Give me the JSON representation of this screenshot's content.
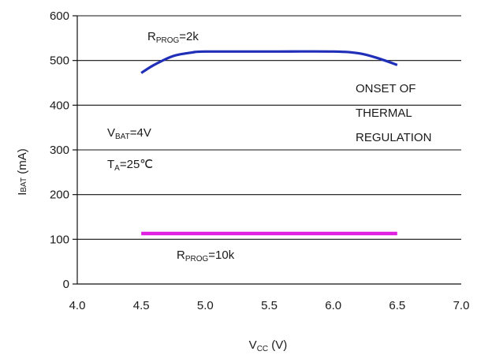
{
  "chart_data": {
    "type": "line",
    "title": "",
    "xlabel": {
      "main": "V",
      "sub": "CC",
      "rest": " (V)"
    },
    "ylabel": {
      "main": "I",
      "sub": "BAT",
      "rest": " (mA)"
    },
    "xlim": [
      4.0,
      7.0
    ],
    "ylim": [
      0,
      600
    ],
    "xticks": [
      "4.0",
      "4.5",
      "5.0",
      "5.5",
      "6.0",
      "6.5",
      "7.0"
    ],
    "yticks": [
      "0",
      "100",
      "200",
      "300",
      "400",
      "500",
      "600"
    ],
    "grid": "horizontal",
    "series": [
      {
        "color": "#1f2fb8",
        "x": [
          4.5,
          4.6,
          4.75,
          4.9,
          5.0,
          5.5,
          6.0,
          6.2,
          6.35,
          6.5
        ],
        "y": [
          472,
          490,
          510,
          518,
          520,
          520,
          520,
          516,
          505,
          490
        ]
      },
      {
        "color": "#e020e0",
        "x": [
          4.5,
          6.5
        ],
        "y": [
          113,
          113
        ]
      }
    ],
    "annotations": {
      "rprog_2k": {
        "main": "R",
        "sub": "PROG",
        "rest": "=2k"
      },
      "rprog_10k": {
        "main": "R",
        "sub": "PROG",
        "rest": "=10k"
      },
      "vbat": {
        "main": "V",
        "sub": "BAT",
        "rest": "=4V"
      },
      "ta": {
        "main": "T",
        "sub": "A",
        "rest": "=25℃"
      },
      "thermal": [
        "ONSET OF",
        "THERMAL",
        "REGULATION"
      ]
    }
  }
}
